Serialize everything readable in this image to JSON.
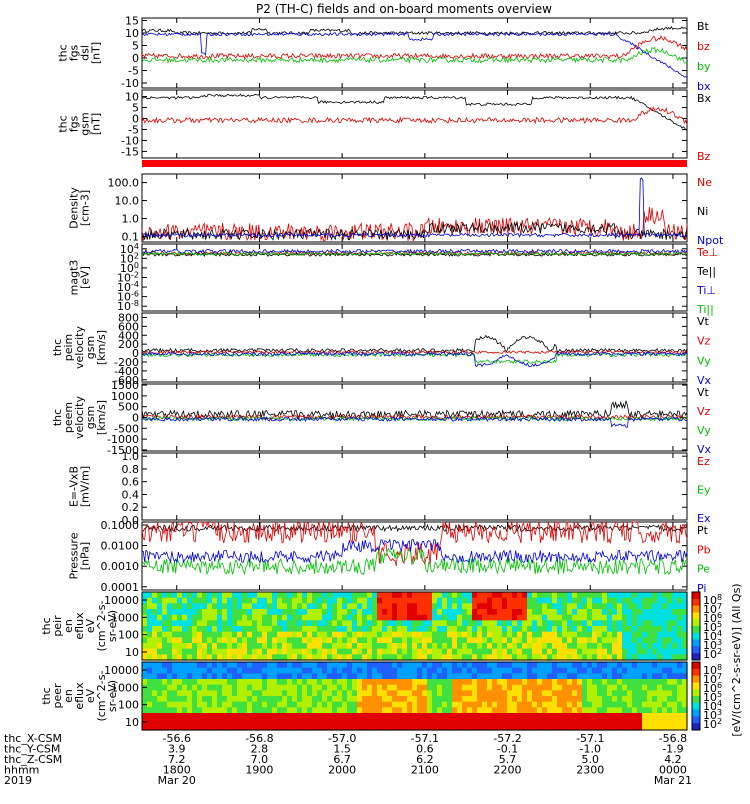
{
  "title": "P2 (TH-C) fields and on-board moments overview",
  "chart_data": {
    "type": "line",
    "title": "P2 (TH-C) fields and on-board moments overview",
    "time_axis": {
      "ticks": [
        "1800",
        "1900",
        "2000",
        "2100",
        "2200",
        "2300",
        "0000"
      ],
      "tick_hours": [
        18,
        19,
        20,
        21,
        22,
        23,
        24
      ],
      "range_hours": [
        17.58,
        24.17
      ],
      "rows": [
        {
          "label": "thc_X-CSM",
          "values": [
            "-56.6",
            "-56.8",
            "-57.0",
            "-57.1",
            "-57.2",
            "-57.1",
            "-56.8"
          ]
        },
        {
          "label": "thc_Y-CSM",
          "values": [
            "3.9",
            "2.8",
            "1.5",
            "0.6",
            "-0.1",
            "-1.0",
            "-1.9"
          ]
        },
        {
          "label": "thc_Z-CSM",
          "values": [
            "7.2",
            "7.0",
            "6.7",
            "6.2",
            "5.7",
            "5.0",
            "4.2"
          ]
        },
        {
          "label": "hhmm",
          "values": [
            "1800",
            "1900",
            "2000",
            "2100",
            "2200",
            "2300",
            "0000"
          ]
        },
        {
          "label": "2019",
          "values": [
            "Mar 20",
            "",
            "",
            "",
            "",
            "",
            "Mar 21"
          ]
        }
      ]
    },
    "panels": [
      {
        "id": "fgs-dsl",
        "ylabel": [
          "thc",
          "fgs",
          "dsl",
          "[nT]"
        ],
        "yticks": [
          15,
          10,
          5,
          0,
          -5,
          -10
        ],
        "ylim": [
          -12,
          16
        ],
        "scale": "linear",
        "series": [
          {
            "name": "Bt",
            "color": "#000000"
          },
          {
            "name": "bz",
            "color": "#e00000"
          },
          {
            "name": "by",
            "color": "#00c000"
          },
          {
            "name": "bx",
            "color": "#0000e0"
          }
        ]
      },
      {
        "id": "fgs-gsm",
        "ylabel": [
          "thc",
          "fgs",
          "gsm",
          "[nT]"
        ],
        "yticks": [
          10,
          5,
          0,
          -5,
          -10,
          -15
        ],
        "ylim": [
          -18,
          13
        ],
        "scale": "linear",
        "series": [
          {
            "name": "Bx",
            "color": "#000000"
          },
          {
            "name": "Bz",
            "color": "#e00000"
          }
        ]
      },
      {
        "id": "density",
        "ylabel": [
          "Density",
          "[cm-3]"
        ],
        "yticks": [
          "100.0",
          "10.0",
          "1.0",
          "0.1"
        ],
        "ylim": [
          0.05,
          300
        ],
        "scale": "log",
        "series": [
          {
            "name": "Ne",
            "color": "#e00000"
          },
          {
            "name": "Ni",
            "color": "#000000"
          },
          {
            "name": "Npot",
            "color": "#0000e0"
          }
        ]
      },
      {
        "id": "temperature",
        "ylabel": [
          "magt3",
          "[eV]"
        ],
        "yticks": [
          "10^4",
          "10^2",
          "10^0",
          "10^-2",
          "10^-4",
          "10^-6",
          "10^-8"
        ],
        "ylim": [
          1e-09,
          100000.0
        ],
        "scale": "log",
        "series": [
          {
            "name": "Te⊥",
            "color": "#e00000"
          },
          {
            "name": "Te||",
            "color": "#000000"
          },
          {
            "name": "Ti⊥",
            "color": "#0000e0"
          },
          {
            "name": "Ti||",
            "color": "#00c000"
          }
        ]
      },
      {
        "id": "peim-velocity",
        "ylabel": [
          "thc",
          "peim",
          "velocity",
          "gsm",
          "[km/s]"
        ],
        "yticks": [
          800,
          600,
          400,
          200,
          0,
          -200,
          -400,
          -600
        ],
        "ylim": [
          -650,
          900
        ],
        "scale": "linear",
        "series": [
          {
            "name": "Vt",
            "color": "#000000"
          },
          {
            "name": "Vz",
            "color": "#e00000"
          },
          {
            "name": "Vy",
            "color": "#00c000"
          },
          {
            "name": "Vx",
            "color": "#0000e0"
          }
        ]
      },
      {
        "id": "peem-velocity",
        "ylabel": [
          "thc",
          "peem",
          "velocity",
          "gsm",
          "[km/s]"
        ],
        "yticks": [
          1500,
          1000,
          500,
          0,
          -500,
          -1000,
          -1500
        ],
        "ylim": [
          -1550,
          1550
        ],
        "scale": "linear",
        "series": [
          {
            "name": "Vt",
            "color": "#000000"
          },
          {
            "name": "Vz",
            "color": "#e00000"
          },
          {
            "name": "Vy",
            "color": "#00c000"
          },
          {
            "name": "Vx",
            "color": "#0000e0"
          }
        ]
      },
      {
        "id": "efield",
        "ylabel": [
          "E=-VxB",
          "[mV/m]"
        ],
        "yticks": [
          "1.0",
          "0.8",
          "0.6",
          "0.4",
          "0.2",
          "0.0"
        ],
        "ylim": [
          0,
          1.05
        ],
        "scale": "linear",
        "series": [
          {
            "name": "Ez",
            "color": "#e00000"
          },
          {
            "name": "Ey",
            "color": "#00c000"
          },
          {
            "name": "Ex",
            "color": "#0000e0"
          }
        ]
      },
      {
        "id": "pressure",
        "ylabel": [
          "Pressure",
          "[nPa]"
        ],
        "yticks": [
          "0.1000",
          "0.0100",
          "0.0010",
          "0.0001"
        ],
        "ylim": [
          7e-05,
          0.14
        ],
        "scale": "log",
        "series": [
          {
            "name": "Pt",
            "color": "#000000"
          },
          {
            "name": "Pb",
            "color": "#e00000"
          },
          {
            "name": "Pe",
            "color": "#00c000"
          },
          {
            "name": "Pi",
            "color": "#0000e0"
          }
        ]
      },
      {
        "id": "peir-spectrogram",
        "type": "heatmap",
        "ylabel": [
          "thc",
          "peir",
          "en",
          "eflux",
          "eV",
          "(cm^2-s-",
          "sr-eV)"
        ],
        "yticks": [
          "10000",
          "1000",
          "100",
          "10"
        ]
      },
      {
        "id": "peer-spectrogram",
        "type": "heatmap",
        "ylabel": [
          "thc",
          "peer",
          "en",
          "eflux",
          "eV",
          "(cm^2-s-",
          "sr-eV)"
        ],
        "yticks": [
          "10000",
          "1000",
          "100",
          "10"
        ]
      }
    ],
    "colorbars": [
      {
        "ticks": [
          "10^8",
          "10^7",
          "10^6",
          "10^5",
          "10^4",
          "10^3",
          "10^2"
        ]
      },
      {
        "ticks": [
          "10^8",
          "10^7",
          "10^6",
          "10^5",
          "10^4",
          "10^3",
          "10^2"
        ]
      }
    ],
    "colorbar_label": "[eV/(cm^2-s-sr-eV)] (All Qs)"
  }
}
